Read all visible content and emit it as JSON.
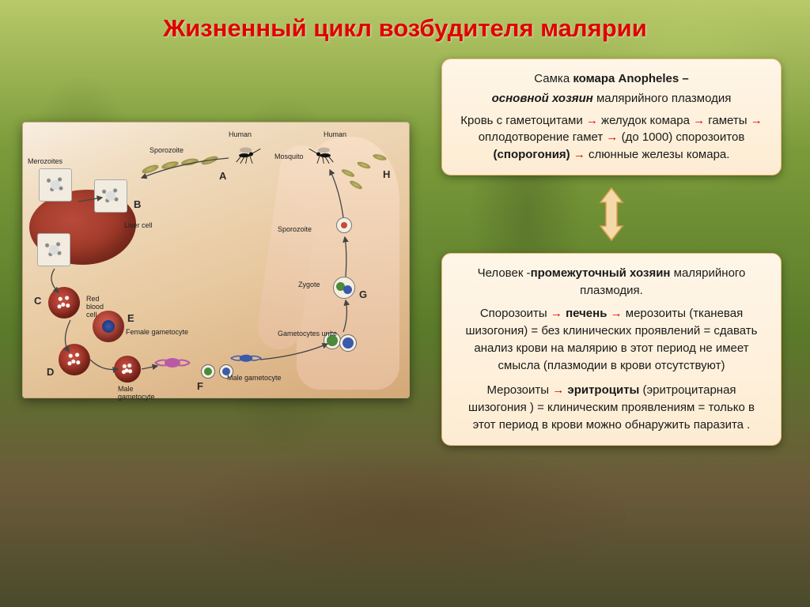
{
  "title": "Жизненный цикл возбудителя малярии",
  "colors": {
    "title": "#e00000",
    "arrow": "#e00000",
    "card_bg_top": "#fff6e8",
    "card_bg_bot": "#fdecd2",
    "card_border": "#e8b878",
    "connector_fill": "#f6d9a8",
    "connector_stroke": "#d8a050",
    "liver": "#8a2a1a",
    "rbc": "#7a1a10",
    "skin": "#e8c0a0",
    "bg_forest_top": "#b8c96a",
    "bg_forest_bot": "#4a4a2a"
  },
  "diagram": {
    "labels": {
      "merozoites": "Merozoites",
      "sporozoite_top": "Sporozoite",
      "human1": "Human",
      "human2": "Human",
      "mosquito": "Mosquito",
      "liver_cell": "Liver cell",
      "red_blood_cell": "Red blood cell",
      "female_gam": "Female gametocyte",
      "male_gam": "Male gametocyte",
      "sporozoite_right": "Sporozoite",
      "zygote": "Zygote",
      "gam_unite": "Gametocytes unite",
      "male_gam2": "Male gametocyte"
    },
    "stages": {
      "A": "A",
      "B": "B",
      "C": "C",
      "D": "D",
      "E": "E",
      "F": "F",
      "G": "G",
      "H": "H"
    }
  },
  "card1": {
    "heading_pre": "Самка ",
    "heading_bold": "комара Anopheles –",
    "sub_bold_ital": "основной хозяин",
    "sub_rest": " малярийного плазмодия",
    "flow": [
      {
        "t": "Кровь с гаметоцитами"
      },
      {
        "a": true
      },
      {
        "t": " желудок комара "
      },
      {
        "a": true
      },
      {
        "t": " гаметы "
      },
      {
        "a": true
      },
      {
        "t": " оплодотворение гамет "
      },
      {
        "a": true
      },
      {
        "t": " (до 1000) спорозоитов "
      },
      {
        "bold": "(спорогония)"
      },
      {
        "a": true
      },
      {
        "t": " слюнные железы комара."
      }
    ]
  },
  "card2": {
    "heading_pre": "Человек -",
    "heading_bold": "промежуточный хозяин",
    "heading_post": " малярийного плазмодия.",
    "flow1": [
      {
        "t": "Спорозоиты"
      },
      {
        "a": true
      },
      {
        "t": " "
      },
      {
        "bold": "печень"
      },
      {
        "t": " "
      },
      {
        "a": true
      },
      {
        "t": " мерозоиты (тканевая шизогония) = без клинических проявлений = сдавать анализ крови на малярию в этот период не имеет смысла (плазмодии в крови отсутствуют)"
      }
    ],
    "flow2": [
      {
        "t": "Мерозоиты "
      },
      {
        "a": true
      },
      {
        "t": " "
      },
      {
        "bold": "эритроциты"
      },
      {
        "t": " (эритроцитарная шизогония ) = клиническим проявлениям = только в этот период в крови можно обнаружить паразита ."
      }
    ]
  }
}
